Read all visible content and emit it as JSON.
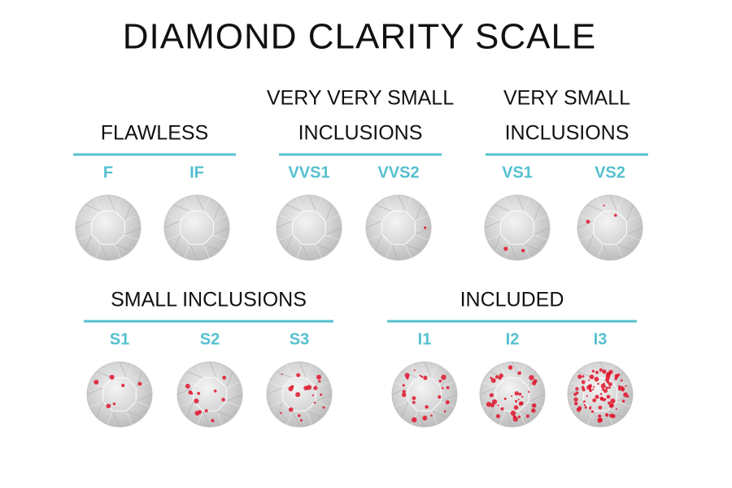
{
  "title": "DIAMOND CLARITY SCALE",
  "groups": [
    {
      "label": [
        "FLAWLESS"
      ],
      "grades": [
        "F",
        "IF"
      ]
    },
    {
      "label": [
        "VERY VERY SMALL",
        "INCLUSIONS"
      ],
      "grades": [
        "VVS1",
        "VVS2"
      ]
    },
    {
      "label": [
        "VERY SMALL",
        "INCLUSIONS"
      ],
      "grades": [
        "VS1",
        "VS2"
      ]
    },
    {
      "label": [
        "SMALL INCLUSIONS"
      ],
      "grades": [
        "S1",
        "S2",
        "S3"
      ]
    },
    {
      "label": [
        "INCLUDED"
      ],
      "grades": [
        "I1",
        "I2",
        "I3"
      ]
    }
  ]
}
